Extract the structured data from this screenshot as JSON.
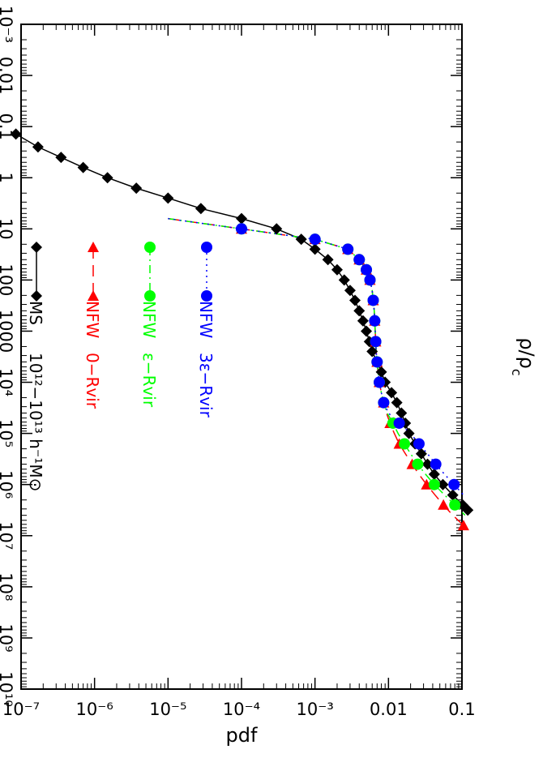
{
  "chart_data": {
    "type": "line",
    "rotation": "90 degrees clockwise",
    "xlabel": "ρ/ρc",
    "xlabel_symbol": "ρ",
    "xlabel_sub_symbol": "ρ",
    "xlabel_sub": "c",
    "ylabel": "pdf",
    "xscale": "log",
    "yscale": "log",
    "xlim": [
      0.001,
      10000000000
    ],
    "ylim": [
      1e-07,
      0.1
    ],
    "x_tick_labels": [
      "10⁻³",
      "0.01",
      "0.1",
      "1",
      "10",
      "100",
      "1000",
      "10⁴",
      "10⁵",
      "10⁶",
      "10⁷",
      "10⁸",
      "10⁹",
      "10¹⁰"
    ],
    "y_tick_labels": [
      "10⁻⁷",
      "10⁻⁶",
      "10⁻⁵",
      "10⁻⁴",
      "10⁻³",
      "0.01",
      "0.1"
    ],
    "legend_position": "top-left (along top edge in the rotated figure)",
    "legend": [
      {
        "label": "MS",
        "extra": "10¹²−10¹³ h⁻¹M⊙"
      },
      {
        "label": "NFW",
        "extra": "0−Rvir"
      },
      {
        "label": "NFW",
        "extra": "ε−Rvir"
      },
      {
        "label": "NFW",
        "extra": "3ε−Rvir"
      }
    ],
    "series": [
      {
        "name": "MS 10¹²−10¹³ h⁻¹M⊙",
        "color": "#000000",
        "marker": "diamond",
        "line": "solid",
        "points": [
          [
            0.14,
            8.5e-08
          ],
          [
            0.25,
            1.7e-07
          ],
          [
            0.4,
            3.5e-07
          ],
          [
            0.63,
            7e-07
          ],
          [
            1.0,
            1.5e-06
          ],
          [
            1.6,
            3.7e-06
          ],
          [
            2.5,
            1e-05
          ],
          [
            4.0,
            2.8e-05
          ],
          [
            6.3,
            0.0001
          ],
          [
            10,
            0.0003
          ],
          [
            16,
            0.00065
          ],
          [
            25,
            0.001
          ],
          [
            40,
            0.0015
          ],
          [
            63,
            0.002
          ],
          [
            100,
            0.0025
          ],
          [
            160,
            0.003
          ],
          [
            250,
            0.0035
          ],
          [
            400,
            0.004
          ],
          [
            630,
            0.0045
          ],
          [
            1000,
            0.005
          ],
          [
            1600,
            0.0055
          ],
          [
            2500,
            0.006
          ],
          [
            4000,
            0.007
          ],
          [
            6300,
            0.008
          ],
          [
            10000,
            0.009
          ],
          [
            16000,
            0.011
          ],
          [
            25000,
            0.013
          ],
          [
            40000,
            0.015
          ],
          [
            63000,
            0.017
          ],
          [
            100000,
            0.019
          ],
          [
            160000,
            0.023
          ],
          [
            250000,
            0.028
          ],
          [
            400000,
            0.034
          ],
          [
            630000,
            0.042
          ],
          [
            1000000,
            0.055
          ],
          [
            1600000,
            0.075
          ],
          [
            2500000,
            0.102
          ],
          [
            3160000,
            0.12
          ]
        ]
      },
      {
        "name": "NFW 0−Rvir",
        "color": "#ff0000",
        "marker": "triangle",
        "line": "dashed",
        "points": [
          [
            6.3,
            1e-05
          ],
          [
            10,
            0.0001
          ],
          [
            16,
            0.001
          ],
          [
            25,
            0.0028
          ],
          [
            40,
            0.004
          ],
          [
            63,
            0.005
          ],
          [
            100,
            0.0056
          ],
          [
            160,
            0.006
          ],
          [
            250,
            0.0062
          ],
          [
            400,
            0.0064
          ],
          [
            630,
            0.0065
          ],
          [
            1000,
            0.0066
          ],
          [
            1600,
            0.0067
          ],
          [
            2500,
            0.0068
          ],
          [
            4000,
            0.007
          ],
          [
            6300,
            0.0072
          ],
          [
            10000,
            0.0075
          ],
          [
            16000,
            0.008
          ],
          [
            25000,
            0.0086
          ],
          [
            40000,
            0.0094
          ],
          [
            63000,
            0.0105
          ],
          [
            100000,
            0.012
          ],
          [
            160000,
            0.014
          ],
          [
            250000,
            0.017
          ],
          [
            400000,
            0.021
          ],
          [
            630000,
            0.026
          ],
          [
            1000000,
            0.033
          ],
          [
            1600000,
            0.043
          ],
          [
            2500000,
            0.056
          ],
          [
            3980000,
            0.075
          ],
          [
            6300000,
            0.105
          ]
        ]
      },
      {
        "name": "NFW ε−Rvir",
        "color": "#00ff00",
        "marker": "circle",
        "line": "dash-dot",
        "points": [
          [
            6.3,
            1e-05
          ],
          [
            10,
            0.0001
          ],
          [
            16,
            0.001
          ],
          [
            25,
            0.0028
          ],
          [
            40,
            0.004
          ],
          [
            63,
            0.005
          ],
          [
            100,
            0.0056
          ],
          [
            160,
            0.006
          ],
          [
            250,
            0.0062
          ],
          [
            400,
            0.0064
          ],
          [
            630,
            0.0065
          ],
          [
            1000,
            0.0066
          ],
          [
            1600,
            0.0067
          ],
          [
            2500,
            0.0068
          ],
          [
            4000,
            0.007
          ],
          [
            6300,
            0.0072
          ],
          [
            10000,
            0.0075
          ],
          [
            16000,
            0.008
          ],
          [
            25000,
            0.0086
          ],
          [
            40000,
            0.0096
          ],
          [
            63000,
            0.0115
          ],
          [
            100000,
            0.0135
          ],
          [
            160000,
            0.0165
          ],
          [
            250000,
            0.02
          ],
          [
            400000,
            0.025
          ],
          [
            630000,
            0.032
          ],
          [
            1000000,
            0.042
          ],
          [
            1600000,
            0.058
          ],
          [
            2500000,
            0.08
          ],
          [
            3980000,
            0.11
          ]
        ]
      },
      {
        "name": "NFW 3ε−Rvir",
        "color": "#0000ff",
        "marker": "circle",
        "line": "dotted",
        "points": [
          [
            6.3,
            1e-05
          ],
          [
            10,
            0.0001
          ],
          [
            16,
            0.001
          ],
          [
            25,
            0.0028
          ],
          [
            40,
            0.004
          ],
          [
            63,
            0.005
          ],
          [
            100,
            0.0056
          ],
          [
            160,
            0.006
          ],
          [
            250,
            0.0062
          ],
          [
            400,
            0.0064
          ],
          [
            630,
            0.0065
          ],
          [
            1000,
            0.0066
          ],
          [
            1600,
            0.0067
          ],
          [
            2500,
            0.0068
          ],
          [
            4000,
            0.007
          ],
          [
            6300,
            0.0072
          ],
          [
            10000,
            0.0075
          ],
          [
            16000,
            0.008
          ],
          [
            25000,
            0.0086
          ],
          [
            40000,
            0.01
          ],
          [
            63000,
            0.014
          ],
          [
            100000,
            0.02
          ],
          [
            160000,
            0.026
          ],
          [
            250000,
            0.034
          ],
          [
            400000,
            0.044
          ],
          [
            630000,
            0.058
          ],
          [
            1000000,
            0.078
          ],
          [
            1600000,
            0.105
          ]
        ]
      }
    ]
  }
}
